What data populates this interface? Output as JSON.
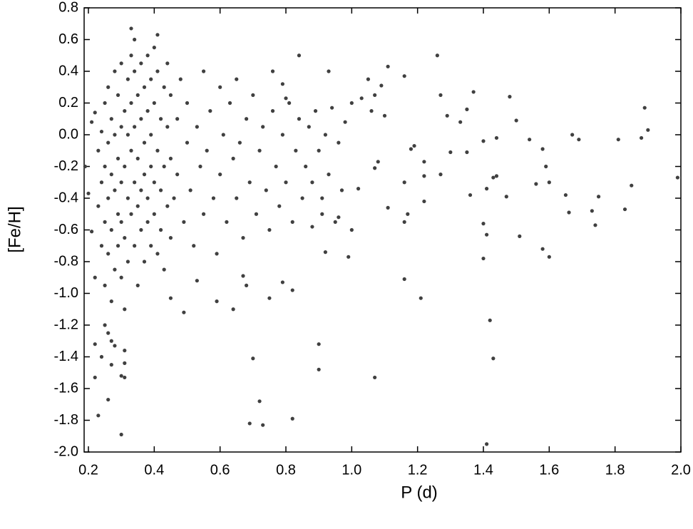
{
  "chart_data": {
    "type": "scatter",
    "x_label": "P (d)",
    "y_label": "[Fe/H]",
    "color": "#404040",
    "xlim": [
      0.187,
      2.0
    ],
    "ylim": [
      -2.0,
      0.8
    ],
    "xticks": [
      0.2,
      0.4,
      0.6,
      0.8,
      {
        "value": 1,
        "label": "1.0"
      },
      1.2,
      1.4,
      1.6,
      1.8,
      {
        "value": 2,
        "label": "2.0"
      }
    ],
    "yticks": [
      0.8,
      0.6,
      0.4,
      0.2,
      {
        "value": 0,
        "label": "0.0"
      },
      -0.2,
      -0.4,
      -0.6,
      -0.8,
      {
        "value": -1,
        "label": "-1.0"
      },
      -1.2,
      -1.4,
      -1.6,
      -1.8,
      {
        "value": -2,
        "label": "-2.0"
      }
    ],
    "x": [
      1.41,
      0.3,
      0.23,
      0.26,
      0.69,
      0.73,
      0.72,
      0.82,
      0.7,
      0.9,
      0.9,
      1.07,
      1.43,
      1.42,
      1.21,
      1.16,
      1.4,
      1.58,
      1.6,
      1.51,
      1.41,
      1.4,
      1.36,
      1.41,
      1.43,
      1.44,
      1.47,
      1.48,
      1.5,
      1.37,
      1.35,
      1.33,
      1.3,
      1.35,
      1.27,
      1.26,
      1.29,
      1.27,
      1.22,
      1.22,
      1.22,
      1.19,
      1.18,
      1.16,
      1.16,
      1.17,
      1.16,
      1.11,
      1.1,
      1.09,
      1.07,
      1.06,
      1.05,
      1.11,
      1.08,
      1.07,
      1.02,
      1.03,
      1.0,
      1.0,
      0.99,
      1.4,
      1.44,
      1.54,
      1.56,
      1.58,
      1.59,
      1.6,
      1.65,
      1.66,
      1.67,
      1.69,
      1.73,
      1.74,
      1.75,
      1.81,
      1.83,
      1.85,
      1.88,
      1.89,
      1.9,
      1.99,
      0.93,
      0.84,
      0.92,
      0.88,
      0.95,
      0.96,
      0.91,
      0.79,
      0.82,
      0.75,
      0.68,
      0.67,
      0.64,
      0.59,
      0.53,
      0.49,
      0.45,
      0.22,
      0.22,
      0.24,
      0.31,
      0.31,
      0.31,
      0.3,
      0.28,
      0.27,
      0.26,
      0.25,
      0.27,
      0.33,
      0.34,
      0.41,
      0.4,
      0.76,
      0.79,
      0.8,
      0.19,
      0.2,
      0.21,
      0.21,
      0.22,
      0.22,
      0.23,
      0.23,
      0.24,
      0.24,
      0.24,
      0.25,
      0.25,
      0.25,
      0.25,
      0.26,
      0.26,
      0.26,
      0.26,
      0.27,
      0.27,
      0.27,
      0.27,
      0.28,
      0.28,
      0.28,
      0.28,
      0.29,
      0.29,
      0.29,
      0.29,
      0.3,
      0.3,
      0.3,
      0.3,
      0.3,
      0.31,
      0.31,
      0.31,
      0.31,
      0.32,
      0.32,
      0.32,
      0.32,
      0.33,
      0.33,
      0.33,
      0.33,
      0.34,
      0.34,
      0.34,
      0.34,
      0.35,
      0.35,
      0.35,
      0.35,
      0.36,
      0.36,
      0.36,
      0.36,
      0.37,
      0.37,
      0.37,
      0.37,
      0.38,
      0.38,
      0.38,
      0.38,
      0.39,
      0.39,
      0.39,
      0.39,
      0.4,
      0.4,
      0.4,
      0.41,
      0.41,
      0.41,
      0.42,
      0.42,
      0.42,
      0.43,
      0.43,
      0.43,
      0.44,
      0.44,
      0.44,
      0.45,
      0.45,
      0.45,
      0.46,
      0.47,
      0.47,
      0.48,
      0.49,
      0.5,
      0.5,
      0.51,
      0.52,
      0.53,
      0.54,
      0.55,
      0.55,
      0.56,
      0.57,
      0.58,
      0.59,
      0.6,
      0.6,
      0.61,
      0.62,
      0.63,
      0.64,
      0.65,
      0.65,
      0.66,
      0.67,
      0.68,
      0.69,
      0.7,
      0.71,
      0.72,
      0.73,
      0.74,
      0.75,
      0.76,
      0.77,
      0.78,
      0.79,
      0.8,
      0.81,
      0.82,
      0.83,
      0.84,
      0.85,
      0.86,
      0.87,
      0.88,
      0.89,
      0.9,
      0.91,
      0.92,
      0.93,
      0.94,
      0.96,
      0.97,
      0.98
    ],
    "values": [
      -1.95,
      -1.89,
      -1.77,
      -1.67,
      -1.82,
      -1.83,
      -1.68,
      -1.79,
      -1.41,
      -1.48,
      -1.32,
      -1.53,
      -1.41,
      -1.17,
      -1.03,
      -0.91,
      -0.78,
      -0.72,
      -0.77,
      -0.64,
      -0.63,
      -0.56,
      -0.38,
      -0.34,
      -0.27,
      -0.26,
      -0.39,
      0.24,
      0.09,
      0.27,
      0.16,
      0.08,
      -0.11,
      -0.11,
      0.25,
      0.5,
      0.12,
      -0.25,
      -0.26,
      -0.42,
      -0.17,
      -0.07,
      -0.09,
      -0.3,
      -0.55,
      -0.5,
      0.37,
      0.43,
      0.12,
      0.31,
      0.25,
      0.15,
      0.35,
      -0.46,
      -0.17,
      -0.21,
      -0.34,
      0.23,
      0.2,
      -0.6,
      -0.77,
      -0.04,
      -0.02,
      -0.03,
      -0.31,
      -0.09,
      -0.2,
      -0.3,
      -0.38,
      -0.49,
      0.0,
      -0.03,
      -0.48,
      -0.57,
      -0.39,
      -0.03,
      -0.47,
      -0.32,
      -0.02,
      0.17,
      0.03,
      -0.27,
      0.4,
      0.5,
      -0.74,
      -0.58,
      -0.55,
      -0.52,
      -0.5,
      -0.93,
      -0.98,
      -1.03,
      -0.95,
      -0.89,
      -1.1,
      -1.05,
      -0.92,
      -1.12,
      -1.03,
      -1.53,
      -1.32,
      -1.4,
      -1.53,
      -1.36,
      -1.44,
      -1.52,
      -1.33,
      -1.3,
      -1.25,
      -1.2,
      -1.45,
      0.67,
      0.6,
      0.63,
      0.55,
      0.4,
      0.32,
      0.23,
      -0.2,
      -0.37,
      0.08,
      -0.61,
      -0.9,
      0.14,
      -0.45,
      -0.1,
      -0.3,
      0.02,
      -0.7,
      -0.2,
      -0.55,
      0.2,
      -0.95,
      -0.4,
      -0.05,
      0.3,
      -0.75,
      -0.25,
      -0.6,
      0.1,
      -1.05,
      -0.35,
      0.0,
      0.4,
      -0.85,
      -0.15,
      -0.5,
      0.25,
      -0.7,
      -0.3,
      0.05,
      0.45,
      -0.9,
      -0.55,
      -0.2,
      0.15,
      -0.65,
      -1.1,
      -0.4,
      0.0,
      0.35,
      -0.8,
      -0.1,
      -0.5,
      0.5,
      0.2,
      -0.3,
      0.05,
      -0.7,
      0.4,
      -0.45,
      -0.15,
      0.25,
      -0.95,
      -0.35,
      0.1,
      -0.6,
      0.45,
      -0.25,
      -0.05,
      0.3,
      -0.8,
      -0.4,
      0.15,
      -0.55,
      0.5,
      -0.2,
      0.0,
      -0.7,
      0.35,
      -0.3,
      0.2,
      -0.5,
      -0.1,
      0.4,
      -0.75,
      -0.35,
      0.1,
      -0.6,
      -0.2,
      0.3,
      -0.85,
      -0.45,
      0.05,
      0.45,
      -0.15,
      -0.65,
      0.25,
      -0.4,
      0.1,
      -0.25,
      0.35,
      -0.55,
      -0.05,
      0.2,
      -0.35,
      -0.7,
      0.05,
      -0.2,
      0.4,
      -0.5,
      -0.1,
      0.15,
      -0.4,
      -0.75,
      0.3,
      -0.25,
      0.0,
      -0.55,
      0.2,
      -0.15,
      0.35,
      -0.4,
      -0.05,
      -0.65,
      0.1,
      -0.3,
      0.25,
      -0.5,
      -0.1,
      0.05,
      -0.35,
      -0.6,
      0.15,
      -0.2,
      -0.45,
      0.0,
      -0.3,
      0.2,
      -0.55,
      -0.1,
      0.1,
      -0.4,
      -0.2,
      0.05,
      -0.3,
      0.15,
      -0.1,
      -0.4,
      0.0,
      -0.25,
      0.17,
      -0.05,
      -0.35,
      0.08
    ]
  }
}
